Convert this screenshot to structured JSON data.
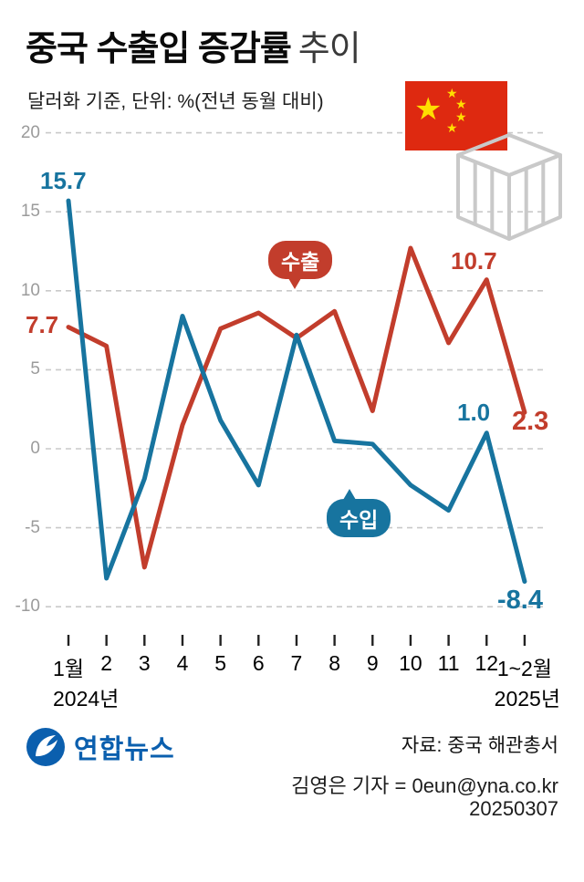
{
  "header": {
    "title": "중국 수출입 증감률",
    "title_suffix": "추이",
    "subtitle": "달러화 기준, 단위: %(전년 동월 대비)"
  },
  "colors": {
    "export_red": "#c23d2c",
    "import_blue": "#17749f",
    "flag_red": "#de2910",
    "star_yellow": "#ffde00",
    "logo_blue": "#0b5fae"
  },
  "icons": {
    "flag": "china-flag",
    "crate": "shipping-crate-icon",
    "logo": "yonhap-logo"
  },
  "chart_data": {
    "type": "line",
    "title": "중국 수출입 증감률 추이",
    "unit": "%(전년 동월 대비)",
    "x_labels": [
      "1월",
      "2",
      "3",
      "4",
      "5",
      "6",
      "7",
      "8",
      "9",
      "10",
      "11",
      "12",
      "1~2월"
    ],
    "x_year_start": "2024년",
    "x_year_end": "2025년",
    "yticks": [
      20,
      15,
      10,
      5,
      0,
      -5,
      -10
    ],
    "ylim": [
      -10,
      20
    ],
    "grid": "dashed-horizontal",
    "series": [
      {
        "name": "수출",
        "color": "#c23d2c",
        "values": [
          7.7,
          6.5,
          -7.5,
          1.5,
          7.6,
          8.6,
          7.0,
          8.7,
          2.4,
          12.7,
          6.7,
          10.7,
          2.3
        ]
      },
      {
        "name": "수입",
        "color": "#17749f",
        "values": [
          15.7,
          -8.2,
          -1.9,
          8.4,
          1.8,
          -2.3,
          7.2,
          0.5,
          0.3,
          -2.3,
          -3.9,
          1.0,
          -8.4
        ]
      }
    ],
    "annotations": {
      "import_start": "15.7",
      "export_start": "7.7",
      "export_dec": "10.7",
      "export_end": "2.3",
      "import_dec": "1.0",
      "import_end": "-8.4"
    }
  },
  "footer": {
    "logo_text": "연합뉴스",
    "source": "자료: 중국 해관총서",
    "byline": "김영은 기자 = 0eun@yna.co.kr",
    "date": "20250307"
  }
}
